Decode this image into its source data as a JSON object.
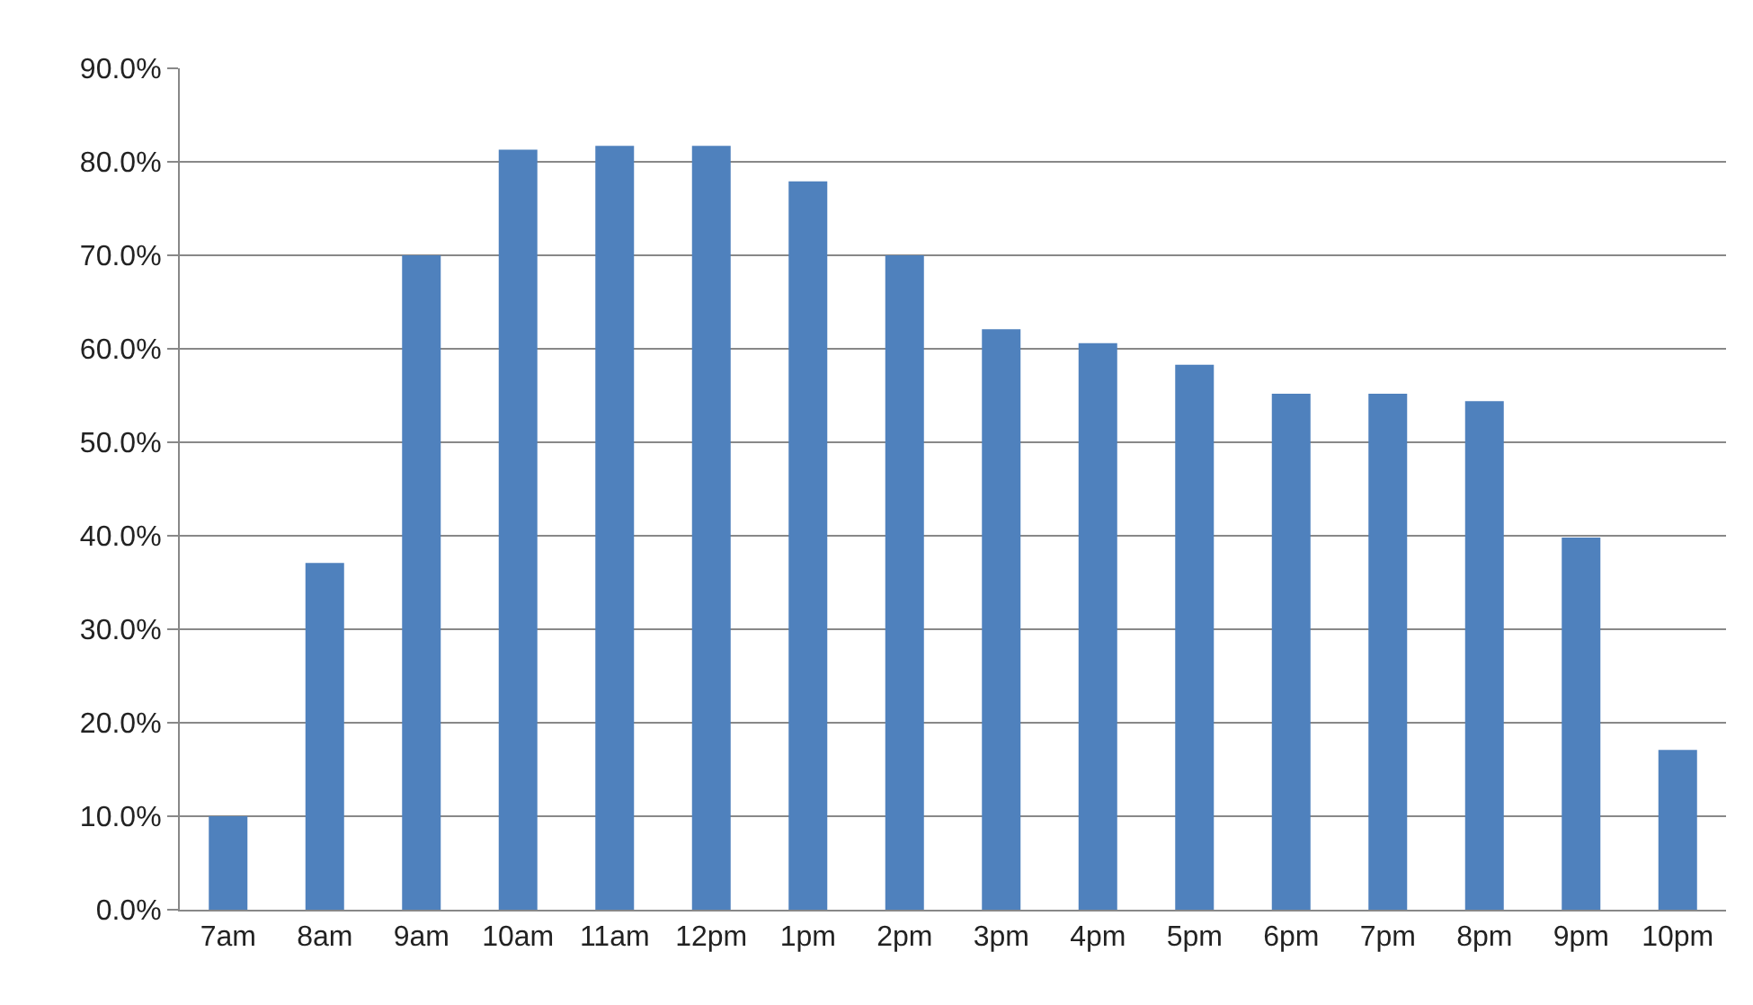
{
  "chart_data": {
    "type": "bar",
    "categories": [
      "7am",
      "8am",
      "9am",
      "10am",
      "11am",
      "12pm",
      "1pm",
      "2pm",
      "3pm",
      "4pm",
      "5pm",
      "6pm",
      "7pm",
      "8pm",
      "9pm",
      "10pm"
    ],
    "values": [
      10.0,
      37.1,
      70.0,
      81.3,
      81.7,
      81.7,
      77.9,
      70.0,
      62.1,
      60.6,
      58.3,
      55.2,
      55.2,
      54.4,
      39.8,
      17.1
    ],
    "color": "#4f81bd",
    "ylim": [
      0,
      90
    ],
    "yticks": [
      {
        "value": 0,
        "label": "0.0%"
      },
      {
        "value": 10,
        "label": "10.0%"
      },
      {
        "value": 20,
        "label": "20.0%"
      },
      {
        "value": 30,
        "label": "30.0%"
      },
      {
        "value": 40,
        "label": "40.0%"
      },
      {
        "value": 50,
        "label": "50.0%"
      },
      {
        "value": 60,
        "label": "60.0%"
      },
      {
        "value": 70,
        "label": "70.0%"
      },
      {
        "value": 80,
        "label": "80.0%"
      },
      {
        "value": 90,
        "label": "90.0%"
      }
    ],
    "grid": "y"
  }
}
